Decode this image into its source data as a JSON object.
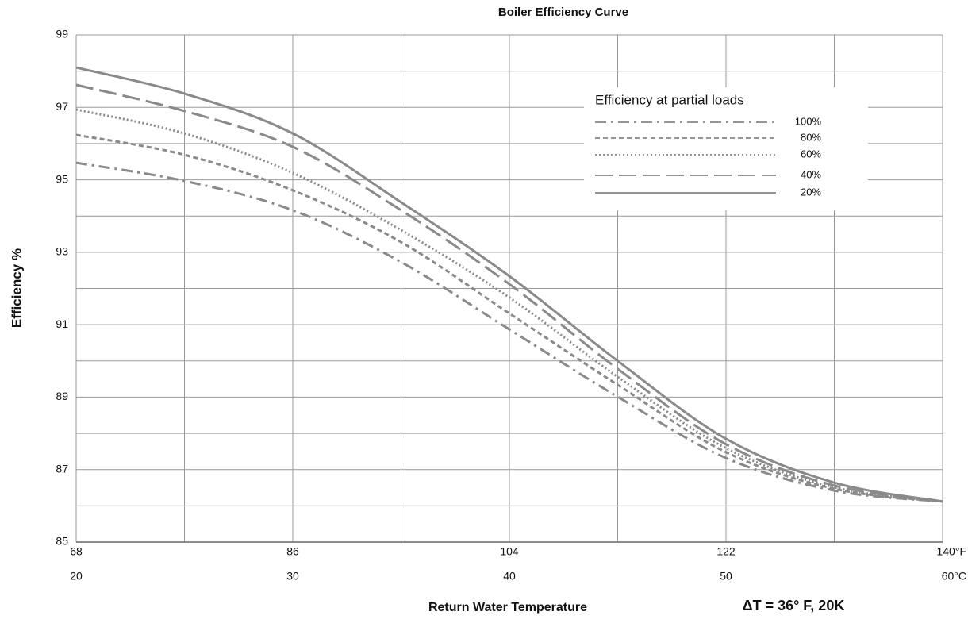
{
  "chart_data": {
    "type": "line",
    "title": "Boiler Efficiency Curve",
    "xlabel": "Return Water Temperature",
    "ylabel": "Efficiency %",
    "annotation": "ΔT = 36° F, 20K",
    "legend_title": "Efficiency at partial loads",
    "legend": "upper right",
    "grid": true,
    "x": [
      68,
      77,
      86,
      95,
      104,
      113,
      122,
      131,
      140
    ],
    "xlim": [
      68,
      140
    ],
    "xticks": [
      68,
      86,
      104,
      122,
      {
        "value": 140,
        "label": "140°F"
      }
    ],
    "x_minor_ticks": [
      77,
      95,
      113,
      131
    ],
    "x2lim": [
      20,
      60
    ],
    "x2ticks": [
      20,
      30,
      40,
      50,
      {
        "value": 60,
        "label": "60°C"
      }
    ],
    "ylim": [
      85,
      99
    ],
    "yticks": [
      85,
      87,
      89,
      91,
      93,
      95,
      97,
      99
    ],
    "y_minor_ticks": [
      86,
      88,
      90,
      92,
      94,
      96,
      98
    ],
    "series": [
      {
        "name": "100%",
        "color": "#8a8a8a",
        "style": "dashdot",
        "values": [
          95.47,
          94.97,
          94.16,
          92.73,
          90.87,
          89.01,
          87.32,
          86.42,
          86.12
        ]
      },
      {
        "name": "80%",
        "color": "#8a8a8a",
        "style": "dash",
        "values": [
          96.24,
          95.69,
          94.71,
          93.28,
          91.31,
          89.34,
          87.48,
          86.47,
          86.12
        ]
      },
      {
        "name": "60%",
        "color": "#8a8a8a",
        "style": "dot",
        "values": [
          96.94,
          96.28,
          95.19,
          93.61,
          91.75,
          89.56,
          87.59,
          86.51,
          86.12
        ]
      },
      {
        "name": "40%",
        "color": "#8a8a8a",
        "style": "longdash",
        "values": [
          97.62,
          96.9,
          95.91,
          94.16,
          92.12,
          89.78,
          87.7,
          86.56,
          86.12
        ]
      },
      {
        "name": "20%",
        "color": "#8a8a8a",
        "style": "solid",
        "values": [
          98.1,
          97.38,
          96.28,
          94.38,
          92.34,
          90.0,
          87.85,
          86.64,
          86.12
        ]
      }
    ]
  }
}
